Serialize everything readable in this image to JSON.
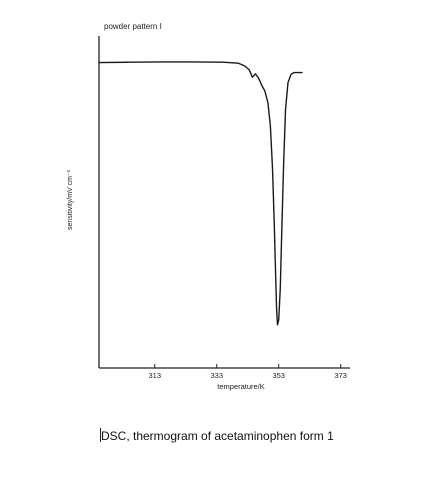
{
  "chart_data": {
    "type": "line",
    "title": "powder pattern I",
    "xlabel": "temperature/K",
    "ylabel": "sensitivity/mV cm⁻¹",
    "xlim": [
      295,
      376
    ],
    "ylim": [
      0,
      100
    ],
    "xticks": [
      313,
      333,
      353,
      373
    ],
    "series": [
      {
        "x": [
          295,
          305,
          315,
          325,
          335,
          340,
          342,
          343.5,
          344.5,
          345.5,
          346.5,
          347.5,
          348.5,
          349.5,
          350.3,
          351,
          351.6,
          352,
          352.3,
          352.6,
          353,
          353.5,
          354,
          354.6,
          355.2,
          356,
          357,
          358,
          359,
          360.5
        ],
        "y": [
          92,
          92.1,
          92.2,
          92.2,
          92.1,
          91.8,
          91,
          89.8,
          87.6,
          88.6,
          87.3,
          85.2,
          83.5,
          80,
          73,
          60,
          42,
          28,
          18,
          13,
          14.5,
          24,
          42,
          62,
          78,
          86,
          88.5,
          89,
          89,
          89
        ]
      }
    ]
  },
  "caption": "DSC, thermogram of acetaminophen form 1"
}
